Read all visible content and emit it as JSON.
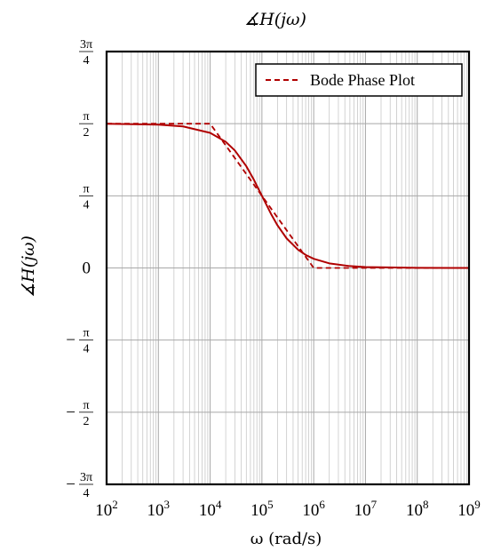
{
  "chart_data": {
    "type": "line",
    "title": "∡H(jω)",
    "xlabel": "ω (rad/s)",
    "ylabel": "∡H(jω)",
    "xscale": "log",
    "xlim": [
      100,
      1000000000
    ],
    "ylim": [
      -2.35619,
      2.35619
    ],
    "grid": "major-and-minor",
    "x_ticks": [
      {
        "value": 100,
        "base": "10",
        "exp": "2"
      },
      {
        "value": 1000,
        "base": "10",
        "exp": "3"
      },
      {
        "value": 10000,
        "base": "10",
        "exp": "4"
      },
      {
        "value": 100000,
        "base": "10",
        "exp": "5"
      },
      {
        "value": 1000000,
        "base": "10",
        "exp": "6"
      },
      {
        "value": 10000000,
        "base": "10",
        "exp": "7"
      },
      {
        "value": 100000000,
        "base": "10",
        "exp": "8"
      },
      {
        "value": 1000000000,
        "base": "10",
        "exp": "9"
      }
    ],
    "y_ticks": [
      {
        "value": 2.35619,
        "sign": "",
        "num": "3π",
        "den": "4"
      },
      {
        "value": 1.5708,
        "sign": "",
        "num": "π",
        "den": "2"
      },
      {
        "value": 0.785398,
        "sign": "",
        "num": "π",
        "den": "4"
      },
      {
        "value": 0,
        "plain": "0"
      },
      {
        "value": -0.785398,
        "sign": "−",
        "num": "π",
        "den": "4"
      },
      {
        "value": -1.5708,
        "sign": "−",
        "num": "π",
        "den": "2"
      },
      {
        "value": -2.35619,
        "sign": "−",
        "num": "3π",
        "den": "4"
      }
    ],
    "legend": {
      "label": "Bode Phase Plot",
      "position": "top-right"
    },
    "colors": {
      "line": "#b00000",
      "grid": "#c8c8c8"
    },
    "series": [
      {
        "style": "solid",
        "x": [
          100,
          1000,
          3000,
          10000,
          20000,
          30000,
          50000,
          70000,
          100000,
          150000,
          200000,
          300000,
          500000,
          700000,
          1000000,
          2000000,
          5000000,
          10000000,
          100000000,
          1000000000
        ],
        "y": [
          1.5698,
          1.5608,
          1.5408,
          1.4711,
          1.3734,
          1.2793,
          1.1071,
          0.9601,
          0.7854,
          0.588,
          0.4636,
          0.3218,
          0.1974,
          0.1419,
          0.0997,
          0.05,
          0.02,
          0.01,
          0.001,
          0.0001
        ]
      },
      {
        "style": "dashed",
        "x": [
          100,
          10000,
          1000000,
          1000000000
        ],
        "y": [
          1.5708,
          1.5708,
          0,
          0
        ]
      }
    ]
  }
}
